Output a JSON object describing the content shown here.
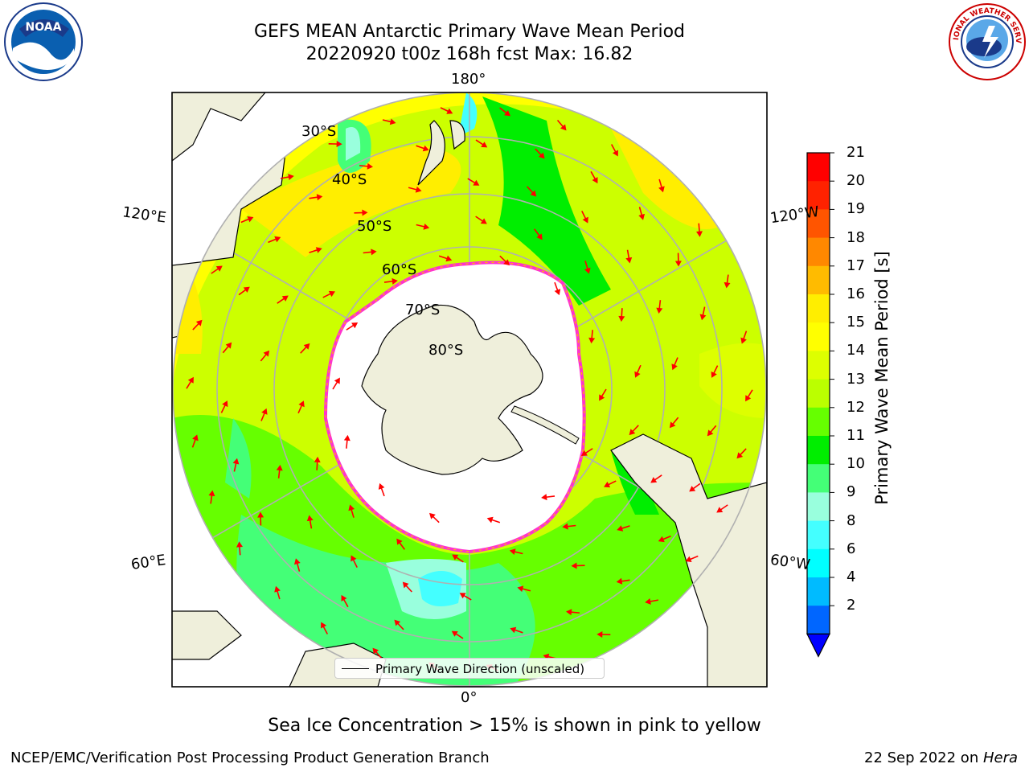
{
  "title": {
    "line1": "GEFS MEAN Antarctic Primary Wave Mean Period",
    "line2": "20220920 t00z 168h fcst   Max: 16.82"
  },
  "map": {
    "projection": "south polar stereographic",
    "lon_labels": {
      "top": "180°",
      "bottom": "0°",
      "left_upper": "120°E",
      "left_lower": "60°E",
      "right_upper": "120°W",
      "right_lower": "60°W"
    },
    "lat_labels": [
      "30°S",
      "40°S",
      "50°S",
      "60°S",
      "70°S",
      "80°S"
    ],
    "colors": {
      "land": "#efefdb",
      "ice_free_dense": "#ffffff",
      "ice_edge": "#ff33cc",
      "arrows": "#ff0000",
      "grid": "#b0b0b0"
    }
  },
  "colorbar": {
    "label": "Primary Wave Mean Period [s]",
    "ticks": [
      "21",
      "20",
      "19",
      "18",
      "17",
      "16",
      "15",
      "14",
      "13",
      "12",
      "11",
      "10",
      "9",
      "8",
      "6",
      "4",
      "2"
    ],
    "colors": [
      "#ff0000",
      "#ff2200",
      "#ff5500",
      "#ff8800",
      "#ffbb00",
      "#ffee00",
      "#ffff00",
      "#ddff00",
      "#bbff00",
      "#66ff00",
      "#00ee00",
      "#44ff77",
      "#99ffdd",
      "#44ffff",
      "#00ffff",
      "#00bbff",
      "#0066ff"
    ],
    "extend_color": "#0000ff"
  },
  "legend": {
    "label": "Primary Wave Direction (unscaled)"
  },
  "notes": {
    "ice": "Sea Ice Concentration > 15% is shown in pink to yellow"
  },
  "footer": {
    "left": "NCEP/EMC/Verification Post Processing Product Generation Branch",
    "right_date": "22 Sep 2022 on ",
    "right_host": "Hera"
  },
  "logos": {
    "left": "NOAA",
    "right_text": "NATIONAL WEATHER SERVICE"
  }
}
